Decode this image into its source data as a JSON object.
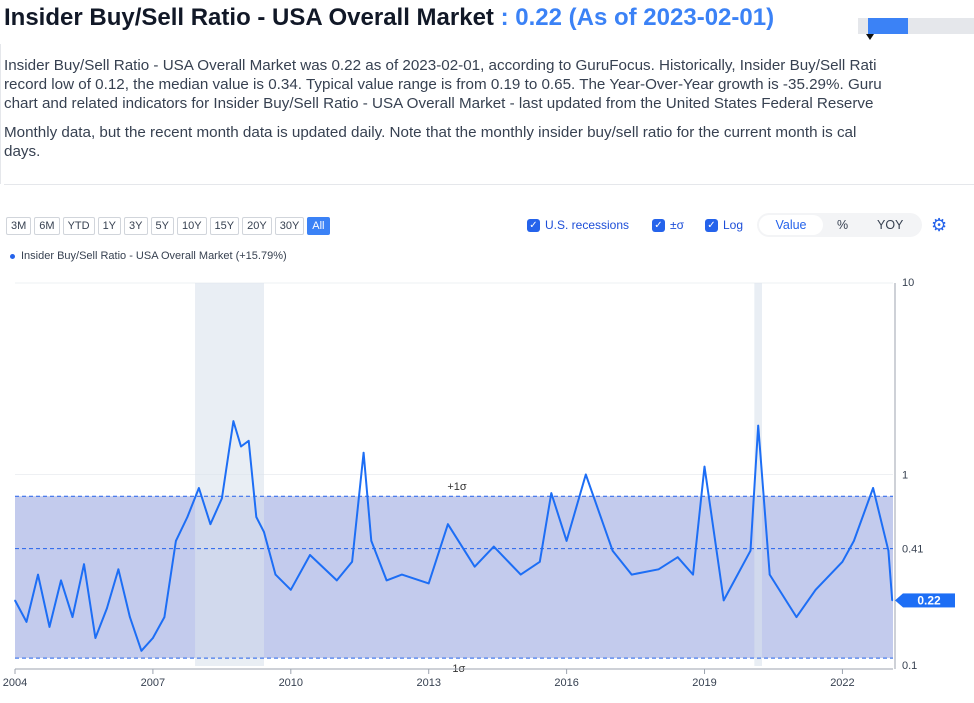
{
  "header": {
    "title": "Insider Buy/Sell Ratio - USA Overall Market",
    "value_text": ": 0.22 (As of 2023-02-01)"
  },
  "description": {
    "line1": "Insider Buy/Sell Ratio - USA Overall Market was 0.22 as of 2023-02-01, according to GuruFocus. Historically, Insider Buy/Sell Rati",
    "line2": "record low of 0.12, the median value is 0.34. Typical value range is from 0.19 to 0.65. The Year-Over-Year growth is -35.29%. Guru",
    "line3": "chart and related indicators for Insider Buy/Sell Ratio - USA Overall Market - last updated from the United States Federal Reserve",
    "line4": "Monthly data, but the recent month data is updated daily. Note that the monthly insider buy/sell ratio for the current month is cal",
    "line5": "days."
  },
  "range_buttons": [
    "3M",
    "6M",
    "YTD",
    "1Y",
    "3Y",
    "5Y",
    "10Y",
    "15Y",
    "20Y",
    "30Y",
    "All"
  ],
  "active_range": "All",
  "options": {
    "recessions_label": "U.S. recessions",
    "sigma_label": "±σ",
    "log_label": "Log",
    "check_glyph": "✓",
    "recessions": true,
    "sigma": true,
    "log": true
  },
  "modes": {
    "value": "Value",
    "percent": "%",
    "yoy": "YOY",
    "selected": "Value"
  },
  "settings_icon": "gear-icon",
  "colors": {
    "accent": "#3b82f6",
    "line": "#1d6ef5",
    "band": "#b9c2ea",
    "recession": "#dbe3ec"
  },
  "chart_data": {
    "type": "line",
    "title": "",
    "xlabel": "",
    "ylabel": "",
    "log_scale": true,
    "ylim": [
      0.1,
      10
    ],
    "legend": "Insider Buy/Sell Ratio - USA Overall Market (+15.79%)",
    "legend_position": "top-left",
    "x_ticks": [
      "2004",
      "2007",
      "2010",
      "2013",
      "2016",
      "2019",
      "2022"
    ],
    "y_ticks": [
      "10",
      "1",
      "0.41",
      "0.1"
    ],
    "last_value_label": "0.22",
    "median_line": 0.41,
    "sigma_band": {
      "upper": 0.77,
      "lower": 0.11,
      "upper_label": "+1σ",
      "lower_label": "-1σ"
    },
    "recessions": [
      {
        "start": "2007-12",
        "end": "2009-06"
      },
      {
        "start": "2020-02",
        "end": "2020-04"
      }
    ],
    "series": [
      {
        "name": "Insider Buy/Sell Ratio - USA Overall Market",
        "x": [
          "2004-01",
          "2004-04",
          "2004-07",
          "2004-10",
          "2005-01",
          "2005-04",
          "2005-07",
          "2005-10",
          "2006-01",
          "2006-04",
          "2006-07",
          "2006-10",
          "2007-01",
          "2007-04",
          "2007-07",
          "2007-10",
          "2008-01",
          "2008-04",
          "2008-07",
          "2008-10",
          "2008-12",
          "2009-02",
          "2009-04",
          "2009-06",
          "2009-09",
          "2010-01",
          "2010-06",
          "2011-01",
          "2011-05",
          "2011-08",
          "2011-10",
          "2012-02",
          "2012-06",
          "2013-01",
          "2013-06",
          "2014-01",
          "2014-06",
          "2015-01",
          "2015-06",
          "2015-09",
          "2016-01",
          "2016-06",
          "2017-01",
          "2017-06",
          "2018-01",
          "2018-06",
          "2018-10",
          "2019-01",
          "2019-06",
          "2020-01",
          "2020-03",
          "2020-06",
          "2021-01",
          "2021-06",
          "2022-01",
          "2022-04",
          "2022-09",
          "2023-01",
          "2023-02"
        ],
        "values": [
          0.22,
          0.17,
          0.3,
          0.16,
          0.28,
          0.18,
          0.34,
          0.14,
          0.2,
          0.32,
          0.18,
          0.12,
          0.14,
          0.18,
          0.45,
          0.6,
          0.85,
          0.55,
          0.75,
          1.9,
          1.4,
          1.5,
          0.6,
          0.5,
          0.3,
          0.25,
          0.38,
          0.28,
          0.35,
          1.3,
          0.45,
          0.28,
          0.3,
          0.27,
          0.55,
          0.33,
          0.42,
          0.3,
          0.35,
          0.8,
          0.45,
          1.0,
          0.4,
          0.3,
          0.32,
          0.37,
          0.3,
          1.1,
          0.22,
          0.4,
          1.8,
          0.3,
          0.18,
          0.25,
          0.35,
          0.45,
          0.85,
          0.4,
          0.22
        ]
      }
    ]
  }
}
